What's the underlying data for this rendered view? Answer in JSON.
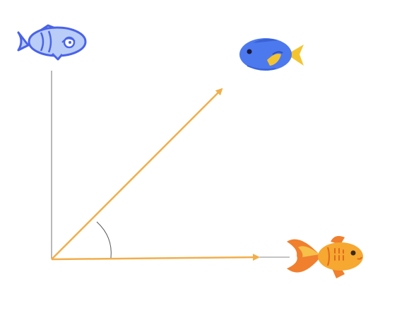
{
  "diagram": {
    "icons": [
      {
        "name": "outline-fish-icon",
        "color": "#4a63e8",
        "fill": "#b9cdf8"
      },
      {
        "name": "blue-tang-fish-icon",
        "color": "#4d79ee",
        "accent": "#f4c430"
      },
      {
        "name": "goldfish-icon",
        "color": "#f07f2e",
        "accent": "#f6c04a"
      }
    ],
    "vectors": [
      {
        "name": "diagonal-vector-arrow",
        "color": "#f2ae4a"
      },
      {
        "name": "horizontal-vector-arrow",
        "color": "#f2ae4a"
      }
    ],
    "axis": {
      "name": "vertical-axis-line",
      "color": "#888888"
    },
    "angle_arc": {
      "name": "angle-arc",
      "color": "#555555"
    }
  }
}
